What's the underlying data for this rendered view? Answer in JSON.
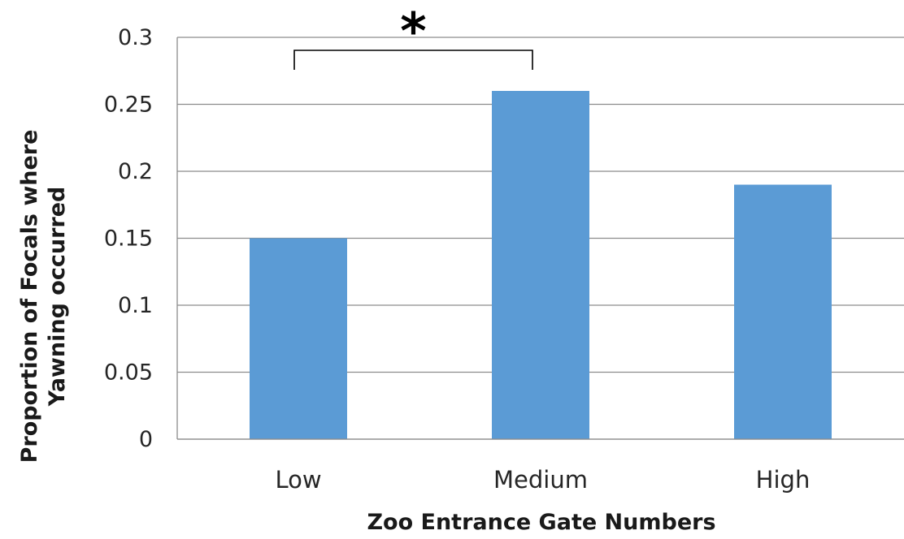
{
  "chart_data": {
    "type": "bar",
    "categories": [
      "Low",
      "Medium",
      "High"
    ],
    "values": [
      0.15,
      0.26,
      0.19
    ],
    "title": "",
    "xlabel": "Zoo Entrance Gate Numbers",
    "ylabel_lines": [
      "Proportion of Focals where",
      "Yawning occurred"
    ],
    "ylim": [
      0,
      0.3
    ],
    "yticks": [
      "0",
      "0.05",
      "0.1",
      "0.15",
      "0.2",
      "0.25",
      "0.3"
    ],
    "grid": true,
    "legend": "none",
    "bar_color": "#5b9bd5",
    "annotation": {
      "label": "*",
      "between": [
        "Low",
        "Medium"
      ]
    }
  }
}
